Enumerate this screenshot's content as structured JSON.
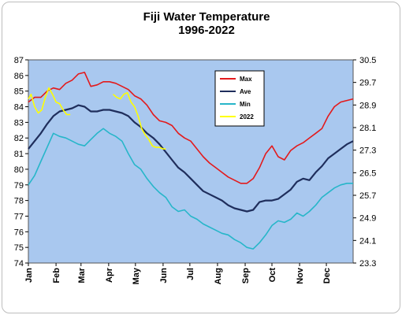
{
  "chart_data": {
    "type": "line",
    "title": "Fiji Water Temperature",
    "subtitle": "1996-2022",
    "xlabel": "",
    "ylabel": "",
    "y_left": {
      "min": 74,
      "max": 87,
      "ticks": [
        "74",
        "75",
        "76",
        "77",
        "78",
        "79",
        "80",
        "81",
        "82",
        "83",
        "84",
        "85",
        "86",
        "87"
      ]
    },
    "y_right": {
      "min": 23.3,
      "max": 30.5,
      "ticks": [
        "23.3",
        "24.1",
        "24.9",
        "25.7",
        "26.5",
        "27.3",
        "28.1",
        "28.9",
        "29.7",
        "30.5"
      ]
    },
    "x_range": [
      1,
      365
    ],
    "months": [
      "Jan",
      "Feb",
      "Mar",
      "Apr",
      "May",
      "Jun",
      "Jul",
      "Aug",
      "Sep",
      "Oct",
      "Nov",
      "Dec"
    ],
    "grid": false,
    "legend_position": "top-right",
    "series": [
      {
        "name": "Max",
        "color": "#e31a1c",
        "x": [
          1,
          8,
          15,
          22,
          29,
          36,
          43,
          50,
          57,
          64,
          71,
          78,
          85,
          92,
          99,
          106,
          113,
          120,
          127,
          134,
          141,
          148,
          155,
          162,
          169,
          176,
          183,
          190,
          197,
          204,
          211,
          218,
          225,
          232,
          239,
          246,
          253,
          260,
          267,
          274,
          281,
          288,
          295,
          302,
          309,
          316,
          323,
          330,
          337,
          344,
          351,
          358,
          365
        ],
        "y": [
          84.3,
          84.6,
          84.6,
          85.0,
          85.2,
          85.1,
          85.5,
          85.7,
          86.1,
          86.2,
          85.3,
          85.4,
          85.6,
          85.6,
          85.5,
          85.3,
          85.1,
          84.7,
          84.5,
          84.1,
          83.5,
          83.1,
          83.0,
          82.8,
          82.3,
          82.0,
          81.8,
          81.3,
          80.8,
          80.4,
          80.1,
          79.8,
          79.5,
          79.3,
          79.1,
          79.1,
          79.4,
          80.1,
          81.0,
          81.5,
          80.8,
          80.6,
          81.2,
          81.5,
          81.7,
          82.0,
          82.3,
          82.6,
          83.4,
          84.0,
          84.3,
          84.4,
          84.5
        ]
      },
      {
        "name": "Ave",
        "color": "#1f2e5c",
        "x": [
          1,
          8,
          15,
          22,
          29,
          36,
          43,
          50,
          57,
          64,
          71,
          78,
          85,
          92,
          99,
          106,
          113,
          120,
          127,
          134,
          141,
          148,
          155,
          162,
          169,
          176,
          183,
          190,
          197,
          204,
          211,
          218,
          225,
          232,
          239,
          246,
          253,
          260,
          267,
          274,
          281,
          288,
          295,
          302,
          309,
          316,
          323,
          330,
          337,
          344,
          351,
          358,
          365
        ],
        "y": [
          81.3,
          81.8,
          82.3,
          82.9,
          83.4,
          83.7,
          83.8,
          83.9,
          84.1,
          84.0,
          83.7,
          83.7,
          83.8,
          83.8,
          83.7,
          83.6,
          83.4,
          83.0,
          82.7,
          82.3,
          82.0,
          81.6,
          81.1,
          80.6,
          80.1,
          79.8,
          79.4,
          79.0,
          78.6,
          78.4,
          78.2,
          78.0,
          77.7,
          77.5,
          77.4,
          77.3,
          77.4,
          77.9,
          78.0,
          78.0,
          78.1,
          78.4,
          78.7,
          79.2,
          79.4,
          79.3,
          79.8,
          80.2,
          80.7,
          81.0,
          81.3,
          81.6,
          81.8
        ]
      },
      {
        "name": "Min",
        "color": "#27b6c9",
        "x": [
          1,
          8,
          15,
          22,
          29,
          36,
          43,
          50,
          57,
          64,
          71,
          78,
          85,
          92,
          99,
          106,
          113,
          120,
          127,
          134,
          141,
          148,
          155,
          162,
          169,
          176,
          183,
          190,
          197,
          204,
          211,
          218,
          225,
          232,
          239,
          246,
          253,
          260,
          267,
          274,
          281,
          288,
          295,
          302,
          309,
          316,
          323,
          330,
          337,
          344,
          351,
          358,
          365
        ],
        "y": [
          79.0,
          79.6,
          80.5,
          81.4,
          82.3,
          82.1,
          82.0,
          81.8,
          81.6,
          81.5,
          81.9,
          82.3,
          82.6,
          82.3,
          82.1,
          81.8,
          81.0,
          80.3,
          80.0,
          79.4,
          78.9,
          78.5,
          78.2,
          77.6,
          77.3,
          77.4,
          77.0,
          76.8,
          76.5,
          76.3,
          76.1,
          75.9,
          75.8,
          75.5,
          75.3,
          75.0,
          74.9,
          75.3,
          75.8,
          76.4,
          76.7,
          76.6,
          76.8,
          77.2,
          77.0,
          77.3,
          77.7,
          78.2,
          78.5,
          78.8,
          79.0,
          79.1,
          79.1
        ]
      },
      {
        "name": "2022",
        "color": "#ffff00",
        "x": [
          1,
          4,
          8,
          12,
          16,
          20,
          24,
          28,
          32,
          36,
          40,
          44,
          48,
          96,
          100,
          104,
          108,
          112,
          116,
          120,
          124,
          128,
          132,
          136,
          140,
          144,
          148,
          152,
          155
        ],
        "y": [
          84.5,
          84.8,
          84.0,
          83.6,
          83.8,
          84.6,
          85.2,
          84.8,
          84.3,
          84.2,
          83.8,
          83.5,
          83.5,
          84.8,
          84.6,
          84.5,
          84.8,
          84.9,
          84.3,
          84.0,
          83.4,
          82.6,
          82.2,
          81.9,
          81.5,
          81.4,
          81.4,
          81.3,
          81.3
        ]
      }
    ]
  }
}
